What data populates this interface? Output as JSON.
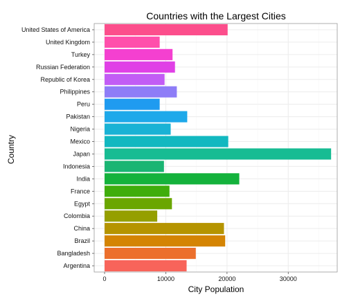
{
  "chart_data": {
    "type": "bar",
    "orientation": "horizontal",
    "title": "Countries with the Largest Cities",
    "xlabel": "City Population",
    "ylabel": "Country",
    "xlim": [
      0,
      38000
    ],
    "xticks": [
      0,
      10000,
      20000,
      30000
    ],
    "xtick_labels": [
      "0",
      "10000",
      "20000",
      "30000"
    ],
    "grid": true,
    "categories": [
      "United States of America",
      "United Kingdom",
      "Turkey",
      "Russian Federation",
      "Republic of Korea",
      "Philippines",
      "Peru",
      "Pakistan",
      "Nigeria",
      "Mexico",
      "Japan",
      "Indonesia",
      "India",
      "France",
      "Egypt",
      "Colombia",
      "China",
      "Brazil",
      "Bangladesh",
      "Argentina"
    ],
    "values": [
      20100,
      9000,
      11100,
      11500,
      9800,
      11800,
      9000,
      13500,
      10800,
      20200,
      37000,
      9700,
      22000,
      10600,
      11000,
      8600,
      19500,
      19700,
      14900,
      13400
    ],
    "colors": [
      "#fc4e8c",
      "#ff4fab",
      "#f440d0",
      "#e040e6",
      "#c25cf5",
      "#8e7df7",
      "#1f9bf0",
      "#1ea9ea",
      "#19b2d5",
      "#12b8c0",
      "#17bc93",
      "#1ab573",
      "#14b23c",
      "#3fad0c",
      "#6aa600",
      "#959f00",
      "#b59400",
      "#d48403",
      "#ec6f2c",
      "#f8645a"
    ]
  }
}
